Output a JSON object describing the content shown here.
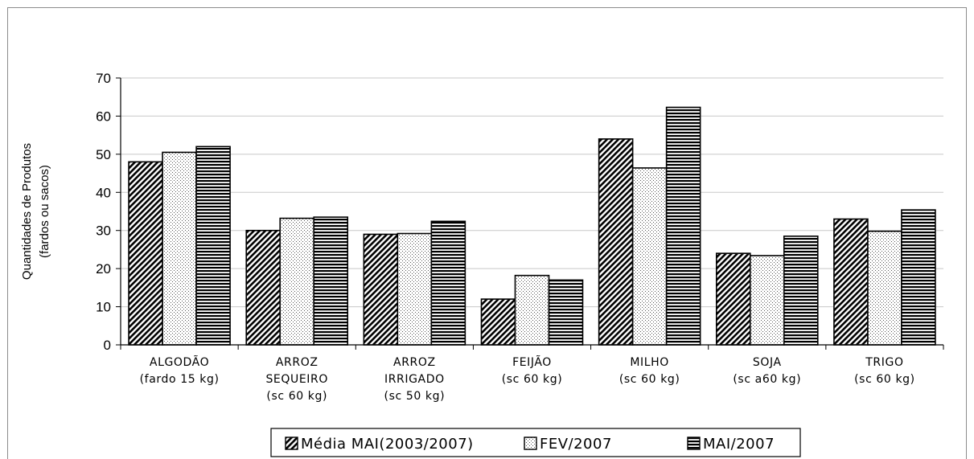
{
  "chart_data": {
    "type": "bar",
    "title": "",
    "xlabel": "",
    "ylabel_lines": [
      "Quantidades de Produtos",
      "(fardos ou sacos)"
    ],
    "ylim": [
      0,
      70
    ],
    "yticks": [
      0,
      10,
      20,
      30,
      40,
      50,
      60,
      70
    ],
    "grid": true,
    "legend_position": "bottom",
    "categories": [
      [
        "ALGODÃO",
        "(fardo 15 kg)"
      ],
      [
        "ARROZ",
        "SEQUEIRO",
        "(sc 60 kg)"
      ],
      [
        "ARROZ",
        "IRRIGADO",
        "(sc 50 kg)"
      ],
      [
        "FEIJÃO",
        "(sc 60 kg)"
      ],
      [
        "MILHO",
        "(sc 60 kg)"
      ],
      [
        "SOJA",
        "(sc a60 kg)"
      ],
      [
        "TRIGO",
        "(sc 60 kg)"
      ]
    ],
    "series": [
      {
        "name": "Média MAI(2003/2007)",
        "pattern": "diagonal-hatch",
        "values": [
          48,
          30,
          29,
          12,
          54,
          24,
          33
        ]
      },
      {
        "name": "FEV/2007",
        "pattern": "dots",
        "values": [
          50.5,
          33.2,
          29.2,
          18.2,
          46.4,
          23.4,
          29.8
        ]
      },
      {
        "name": "MAI/2007",
        "pattern": "horizontal-lines",
        "values": [
          52,
          33.5,
          32.4,
          17,
          62.3,
          28.5,
          35.4
        ]
      }
    ]
  }
}
